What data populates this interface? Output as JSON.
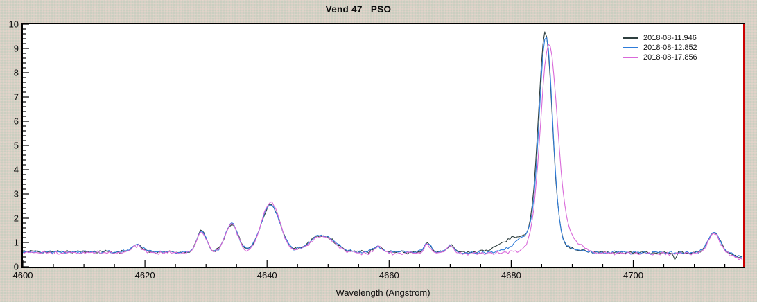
{
  "chart_data": {
    "type": "line",
    "title": "Vend 47   PSO",
    "xlabel": "Wavelength (Angstrom)",
    "ylabel": "",
    "x_range": [
      4600,
      4718
    ],
    "ylim": [
      0,
      10
    ],
    "x_major_ticks": [
      4600,
      4620,
      4640,
      4660,
      4680,
      4700
    ],
    "x_minor_step": 5,
    "y_major_ticks": [
      0,
      1,
      2,
      3,
      4,
      5,
      6,
      7,
      8,
      9,
      10
    ],
    "y_minor_step": 0.2,
    "grid": false,
    "legend_position": "top-right-inside",
    "sample_step": 0.3,
    "colors": {
      "page_bg": "#d5d1c5",
      "plot_bg": "#ffffff",
      "axis": "#000000",
      "right_edge_line": "#cc0000",
      "text": "#0a0a0a"
    },
    "main_emission_line_angstrom": 4686,
    "series": [
      {
        "name": "2018-08-11.946",
        "color": "#2e3f3f",
        "seed": 194611,
        "noise": 0.08,
        "continuum": 0.62,
        "continuum_slope": -0.0004,
        "peaks": [
          {
            "c": 4618.7,
            "a": 0.28,
            "s": 0.9
          },
          {
            "c": 4629.3,
            "a": 0.9,
            "s": 0.75
          },
          {
            "c": 4634.2,
            "a": 1.15,
            "s": 1.05
          },
          {
            "c": 4640.6,
            "a": 1.95,
            "s": 1.55
          },
          {
            "c": 4649.0,
            "a": 0.7,
            "s": 2.0
          },
          {
            "c": 4658.2,
            "a": 0.25,
            "s": 0.7
          },
          {
            "c": 4666.3,
            "a": 0.38,
            "s": 0.55
          },
          {
            "c": 4670.0,
            "a": 0.3,
            "s": 0.6
          },
          {
            "c": 4681.0,
            "a": 0.55,
            "s": 2.6
          },
          {
            "c": 4685.6,
            "a": 8.6,
            "s": 1.12
          },
          {
            "c": 4686.0,
            "a": 0.35,
            "s": 3.2
          },
          {
            "c": 4706.8,
            "a": -0.3,
            "s": 0.22
          },
          {
            "c": 4713.2,
            "a": 0.85,
            "s": 0.95
          },
          {
            "c": 4717.6,
            "a": -0.15,
            "s": 1.2
          }
        ]
      },
      {
        "name": "2018-08-12.852",
        "color": "#2e7cd9",
        "seed": 128522,
        "noise": 0.08,
        "continuum": 0.62,
        "continuum_slope": -0.0004,
        "peaks": [
          {
            "c": 4618.7,
            "a": 0.28,
            "s": 0.9
          },
          {
            "c": 4629.3,
            "a": 0.9,
            "s": 0.75
          },
          {
            "c": 4634.2,
            "a": 1.15,
            "s": 1.05
          },
          {
            "c": 4640.6,
            "a": 1.95,
            "s": 1.55
          },
          {
            "c": 4649.0,
            "a": 0.7,
            "s": 2.0
          },
          {
            "c": 4658.2,
            "a": 0.25,
            "s": 0.7
          },
          {
            "c": 4666.3,
            "a": 0.38,
            "s": 0.55
          },
          {
            "c": 4670.0,
            "a": 0.3,
            "s": 0.6
          },
          {
            "c": 4682.5,
            "a": 0.5,
            "s": 2.0
          },
          {
            "c": 4685.7,
            "a": 8.45,
            "s": 1.08
          },
          {
            "c": 4686.0,
            "a": 0.35,
            "s": 3.2
          },
          {
            "c": 4713.2,
            "a": 0.85,
            "s": 0.95
          },
          {
            "c": 4717.6,
            "a": -0.15,
            "s": 1.2
          }
        ]
      },
      {
        "name": "2018-08-17.856",
        "color": "#d969d9",
        "seed": 178563,
        "noise": 0.085,
        "continuum": 0.58,
        "continuum_slope": -0.0004,
        "peaks": [
          {
            "c": 4618.7,
            "a": 0.28,
            "s": 0.9
          },
          {
            "c": 4629.3,
            "a": 0.9,
            "s": 0.8
          },
          {
            "c": 4634.2,
            "a": 1.2,
            "s": 1.05
          },
          {
            "c": 4640.6,
            "a": 2.1,
            "s": 1.5
          },
          {
            "c": 4649.0,
            "a": 0.7,
            "s": 2.0
          },
          {
            "c": 4658.2,
            "a": 0.25,
            "s": 0.7
          },
          {
            "c": 4666.3,
            "a": 0.35,
            "s": 0.55
          },
          {
            "c": 4670.0,
            "a": 0.28,
            "s": 0.6
          },
          {
            "c": 4686.15,
            "a": 8.0,
            "s": 1.35
          },
          {
            "c": 4688.5,
            "a": 0.55,
            "s": 2.2
          },
          {
            "c": 4686.0,
            "a": 0.35,
            "s": 3.2
          },
          {
            "c": 4713.2,
            "a": 0.85,
            "s": 0.95
          },
          {
            "c": 4717.6,
            "a": -0.2,
            "s": 1.2
          }
        ]
      }
    ]
  }
}
